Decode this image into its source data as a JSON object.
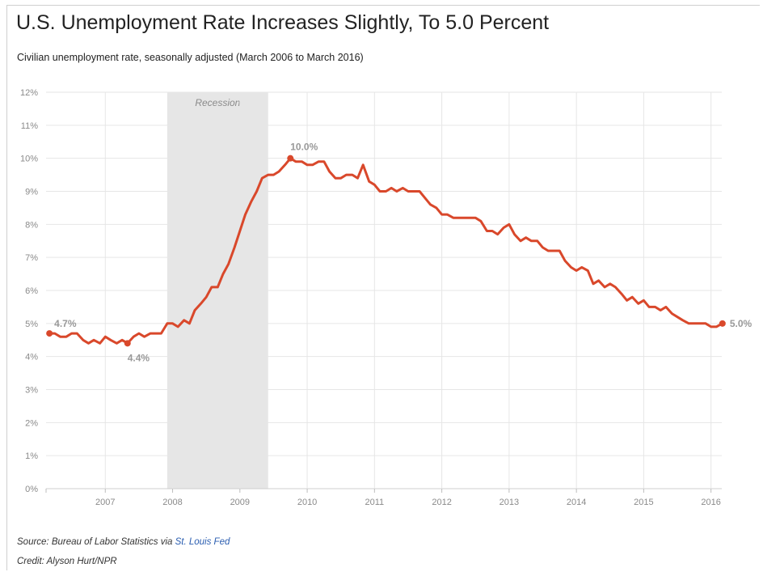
{
  "header": {
    "title": "U.S. Unemployment Rate Increases Slightly, To 5.0 Percent",
    "subtitle": "Civilian unemployment rate, seasonally adjusted (March 2006 to March 2016)"
  },
  "footer": {
    "source_prefix": "Source: Bureau of Labor Statistics via ",
    "source_link": "St. Louis Fed",
    "credit": "Credit: Alyson Hurt/NPR"
  },
  "colors": {
    "line": "#d9482b",
    "recession_shade": "#e6e6e6",
    "grid": "#e6e6e6",
    "label": "#999999"
  },
  "chart_data": {
    "type": "line",
    "title": "U.S. Unemployment Rate Increases Slightly, To 5.0 Percent",
    "subtitle": "Civilian unemployment rate, seasonally adjusted (March 2006 to March 2016)",
    "xlabel": "",
    "ylabel": "",
    "xlim": [
      2006.12,
      2016.16
    ],
    "ylim": [
      0,
      12
    ],
    "x_ticks": [
      {
        "value": 2007.0,
        "label": "2007"
      },
      {
        "value": 2008.0,
        "label": "2008"
      },
      {
        "value": 2009.0,
        "label": "2009"
      },
      {
        "value": 2010.0,
        "label": "2010"
      },
      {
        "value": 2011.0,
        "label": "2011"
      },
      {
        "value": 2012.0,
        "label": "2012"
      },
      {
        "value": 2013.0,
        "label": "2013"
      },
      {
        "value": 2014.0,
        "label": "2014"
      },
      {
        "value": 2015.0,
        "label": "2015"
      },
      {
        "value": 2016.0,
        "label": "2016"
      }
    ],
    "y_ticks": [
      {
        "value": 0,
        "label": "0%"
      },
      {
        "value": 1,
        "label": "1%"
      },
      {
        "value": 2,
        "label": "2%"
      },
      {
        "value": 3,
        "label": "3%"
      },
      {
        "value": 4,
        "label": "4%"
      },
      {
        "value": 5,
        "label": "5%"
      },
      {
        "value": 6,
        "label": "6%"
      },
      {
        "value": 7,
        "label": "7%"
      },
      {
        "value": 8,
        "label": "8%"
      },
      {
        "value": 9,
        "label": "9%"
      },
      {
        "value": 10,
        "label": "10%"
      },
      {
        "value": 11,
        "label": "11%"
      },
      {
        "value": 12,
        "label": "12%"
      }
    ],
    "grid": true,
    "shaded_regions": [
      {
        "label": "Recession",
        "start": 2007.92,
        "end": 2009.42
      }
    ],
    "series": [
      {
        "name": "",
        "x": [
          2006.17,
          2006.25,
          2006.33,
          2006.42,
          2006.5,
          2006.58,
          2006.67,
          2006.75,
          2006.83,
          2006.92,
          2007.0,
          2007.08,
          2007.17,
          2007.25,
          2007.33,
          2007.42,
          2007.5,
          2007.58,
          2007.67,
          2007.75,
          2007.83,
          2007.92,
          2008.0,
          2008.08,
          2008.17,
          2008.25,
          2008.33,
          2008.42,
          2008.5,
          2008.58,
          2008.67,
          2008.75,
          2008.83,
          2008.92,
          2009.0,
          2009.08,
          2009.17,
          2009.25,
          2009.33,
          2009.42,
          2009.5,
          2009.58,
          2009.67,
          2009.75,
          2009.83,
          2009.92,
          2010.0,
          2010.08,
          2010.17,
          2010.25,
          2010.33,
          2010.42,
          2010.5,
          2010.58,
          2010.67,
          2010.75,
          2010.83,
          2010.92,
          2011.0,
          2011.08,
          2011.17,
          2011.25,
          2011.33,
          2011.42,
          2011.5,
          2011.58,
          2011.67,
          2011.75,
          2011.83,
          2011.92,
          2012.0,
          2012.08,
          2012.17,
          2012.25,
          2012.33,
          2012.42,
          2012.5,
          2012.58,
          2012.67,
          2012.75,
          2012.83,
          2012.92,
          2013.0,
          2013.08,
          2013.17,
          2013.25,
          2013.33,
          2013.42,
          2013.5,
          2013.58,
          2013.67,
          2013.75,
          2013.83,
          2013.92,
          2014.0,
          2014.08,
          2014.17,
          2014.25,
          2014.33,
          2014.42,
          2014.5,
          2014.58,
          2014.67,
          2014.75,
          2014.83,
          2014.92,
          2015.0,
          2015.08,
          2015.17,
          2015.25,
          2015.33,
          2015.42,
          2015.5,
          2015.58,
          2015.67,
          2015.75,
          2015.83,
          2015.92,
          2016.0,
          2016.08,
          2016.17
        ],
        "values": [
          4.7,
          4.7,
          4.6,
          4.6,
          4.7,
          4.7,
          4.5,
          4.4,
          4.5,
          4.4,
          4.6,
          4.5,
          4.4,
          4.5,
          4.4,
          4.6,
          4.7,
          4.6,
          4.7,
          4.7,
          4.7,
          5.0,
          5.0,
          4.9,
          5.1,
          5.0,
          5.4,
          5.6,
          5.8,
          6.1,
          6.1,
          6.5,
          6.8,
          7.3,
          7.8,
          8.3,
          8.7,
          9.0,
          9.4,
          9.5,
          9.5,
          9.6,
          9.8,
          10.0,
          9.9,
          9.9,
          9.8,
          9.8,
          9.9,
          9.9,
          9.6,
          9.4,
          9.4,
          9.5,
          9.5,
          9.4,
          9.8,
          9.3,
          9.2,
          9.0,
          9.0,
          9.1,
          9.0,
          9.1,
          9.0,
          9.0,
          9.0,
          8.8,
          8.6,
          8.5,
          8.3,
          8.3,
          8.2,
          8.2,
          8.2,
          8.2,
          8.2,
          8.1,
          7.8,
          7.8,
          7.7,
          7.9,
          8.0,
          7.7,
          7.5,
          7.6,
          7.5,
          7.5,
          7.3,
          7.2,
          7.2,
          7.2,
          6.9,
          6.7,
          6.6,
          6.7,
          6.6,
          6.2,
          6.3,
          6.1,
          6.2,
          6.1,
          5.9,
          5.7,
          5.8,
          5.6,
          5.7,
          5.5,
          5.5,
          5.4,
          5.5,
          5.3,
          5.2,
          5.1,
          5.0,
          5.0,
          5.0,
          5.0,
          4.9,
          4.9,
          5.0
        ]
      }
    ],
    "annotations": [
      {
        "text": "4.7%",
        "x": 2006.17,
        "y": 4.7
      },
      {
        "text": "4.4%",
        "x": 2007.33,
        "y": 4.4
      },
      {
        "text": "10.0%",
        "x": 2009.75,
        "y": 10.0
      },
      {
        "text": "5.0%",
        "x": 2016.17,
        "y": 5.0
      }
    ]
  }
}
